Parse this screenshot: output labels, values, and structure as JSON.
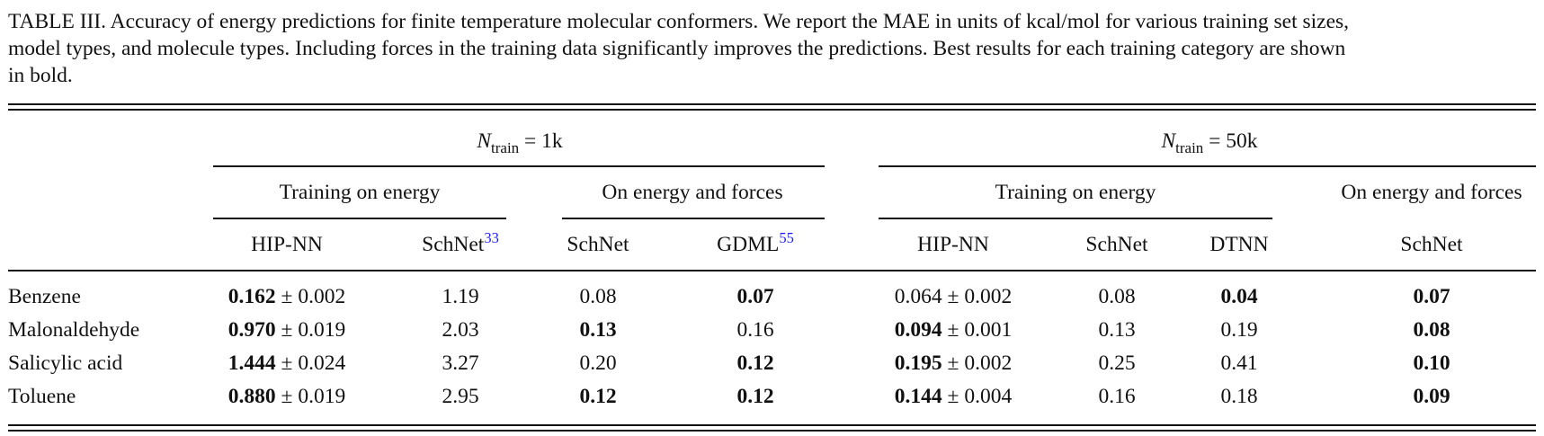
{
  "caption": {
    "line1": "TABLE III.  Accuracy of energy predictions for finite temperature molecular conformers. We report the MAE in units of kcal/mol for various training set sizes,",
    "line2": "model types, and molecule types. Including forces in the training data significantly improves the predictions. Best results for each training category are shown",
    "line3": "in bold."
  },
  "groups": {
    "g1": {
      "n": "N",
      "sub": "train",
      "eq": " = 1k"
    },
    "g2": {
      "n": "N",
      "sub": "train",
      "eq": " = 50k"
    }
  },
  "subgroups": {
    "energy1": "Training on energy",
    "forces1": "On energy and forces",
    "energy2": "Training on energy",
    "forces2": "On energy and forces"
  },
  "columns": {
    "c1": "HIP-NN",
    "c2": "SchNet",
    "c2ref": "33",
    "c3": "SchNet",
    "c4": "GDML",
    "c4ref": "55",
    "c5": "HIP-NN",
    "c6": "SchNet",
    "c7": "DTNN",
    "c8": "SchNet"
  },
  "rows": [
    {
      "name": "Benzene",
      "c1": {
        "main": "0.162",
        "err": " ± 0.002",
        "bold": true
      },
      "c2": {
        "main": "1.19",
        "err": "",
        "bold": false
      },
      "c3": {
        "main": "0.08",
        "err": "",
        "bold": false
      },
      "c4": {
        "main": "0.07",
        "err": "",
        "bold": true
      },
      "c5": {
        "main": "0.064",
        "err": " ± 0.002",
        "bold": false
      },
      "c6": {
        "main": "0.08",
        "err": "",
        "bold": false
      },
      "c7": {
        "main": "0.04",
        "err": "",
        "bold": true
      },
      "c8": {
        "main": "0.07",
        "err": "",
        "bold": true
      }
    },
    {
      "name": "Malonaldehyde",
      "c1": {
        "main": "0.970",
        "err": " ± 0.019",
        "bold": true
      },
      "c2": {
        "main": "2.03",
        "err": "",
        "bold": false
      },
      "c3": {
        "main": "0.13",
        "err": "",
        "bold": true
      },
      "c4": {
        "main": "0.16",
        "err": "",
        "bold": false
      },
      "c5": {
        "main": "0.094",
        "err": " ± 0.001",
        "bold": true
      },
      "c6": {
        "main": "0.13",
        "err": "",
        "bold": false
      },
      "c7": {
        "main": "0.19",
        "err": "",
        "bold": false
      },
      "c8": {
        "main": "0.08",
        "err": "",
        "bold": true
      }
    },
    {
      "name": "Salicylic acid",
      "c1": {
        "main": "1.444",
        "err": " ± 0.024",
        "bold": true
      },
      "c2": {
        "main": "3.27",
        "err": "",
        "bold": false
      },
      "c3": {
        "main": "0.20",
        "err": "",
        "bold": false
      },
      "c4": {
        "main": "0.12",
        "err": "",
        "bold": true
      },
      "c5": {
        "main": "0.195",
        "err": " ± 0.002",
        "bold": true
      },
      "c6": {
        "main": "0.25",
        "err": "",
        "bold": false
      },
      "c7": {
        "main": "0.41",
        "err": "",
        "bold": false
      },
      "c8": {
        "main": "0.10",
        "err": "",
        "bold": true
      }
    },
    {
      "name": "Toluene",
      "c1": {
        "main": "0.880",
        "err": " ± 0.019",
        "bold": true
      },
      "c2": {
        "main": "2.95",
        "err": "",
        "bold": false
      },
      "c3": {
        "main": "0.12",
        "err": "",
        "bold": true
      },
      "c4": {
        "main": "0.12",
        "err": "",
        "bold": true
      },
      "c5": {
        "main": "0.144",
        "err": " ± 0.004",
        "bold": true
      },
      "c6": {
        "main": "0.16",
        "err": "",
        "bold": false
      },
      "c7": {
        "main": "0.18",
        "err": "",
        "bold": false
      },
      "c8": {
        "main": "0.09",
        "err": "",
        "bold": true
      }
    }
  ]
}
